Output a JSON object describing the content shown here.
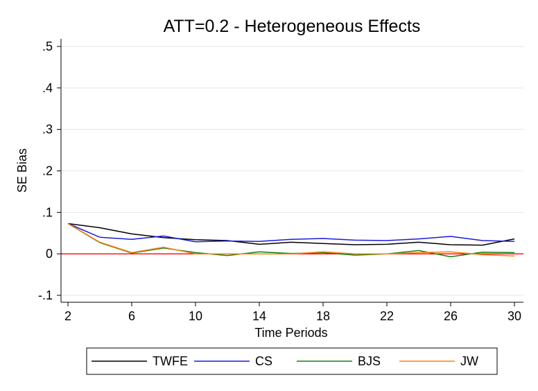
{
  "chart_data": {
    "type": "line",
    "title": "ATT=0.2 - Heterogeneous Effects",
    "xlabel": "Time Periods",
    "ylabel": "SE Bias",
    "xlim": [
      2,
      30
    ],
    "ylim": [
      -0.1,
      0.5
    ],
    "x_ticks": [
      2,
      6,
      10,
      14,
      18,
      22,
      26,
      30
    ],
    "x_tick_labels": [
      "2",
      "6",
      "10",
      "14",
      "18",
      "22",
      "26",
      "30"
    ],
    "y_ticks": [
      -0.1,
      0,
      0.1,
      0.2,
      0.3,
      0.4,
      0.5
    ],
    "y_tick_labels": [
      "-.1",
      "0",
      ".1",
      ".2",
      ".3",
      ".4",
      ".5"
    ],
    "grid": "horizontal",
    "reference_line": {
      "y": 0,
      "color": "#ff0000"
    },
    "legend_position": "bottom",
    "x": [
      2,
      4,
      6,
      8,
      10,
      12,
      14,
      16,
      18,
      20,
      22,
      24,
      26,
      28,
      30
    ],
    "series": [
      {
        "name": "TWFE",
        "color": "#000000",
        "values": [
          0.073,
          0.063,
          0.048,
          0.039,
          0.034,
          0.032,
          0.023,
          0.028,
          0.025,
          0.022,
          0.023,
          0.028,
          0.022,
          0.021,
          0.036
        ]
      },
      {
        "name": "CS",
        "color": "#1a1adc",
        "values": [
          0.073,
          0.04,
          0.035,
          0.043,
          0.029,
          0.031,
          0.03,
          0.035,
          0.037,
          0.033,
          0.032,
          0.036,
          0.042,
          0.032,
          0.03
        ]
      },
      {
        "name": "BJS",
        "color": "#108010",
        "values": [
          0.073,
          0.027,
          0.002,
          0.014,
          0.003,
          -0.004,
          0.005,
          0.001,
          0.003,
          -0.003,
          0.0,
          0.008,
          -0.007,
          0.004,
          0.003
        ]
      },
      {
        "name": "JW",
        "color": "#ff7f0e",
        "values": [
          0.073,
          0.028,
          0.003,
          0.016,
          0.0,
          0.0,
          0.0,
          0.0,
          0.005,
          0.0,
          0.0,
          0.003,
          0.005,
          -0.002,
          -0.005
        ]
      }
    ]
  }
}
